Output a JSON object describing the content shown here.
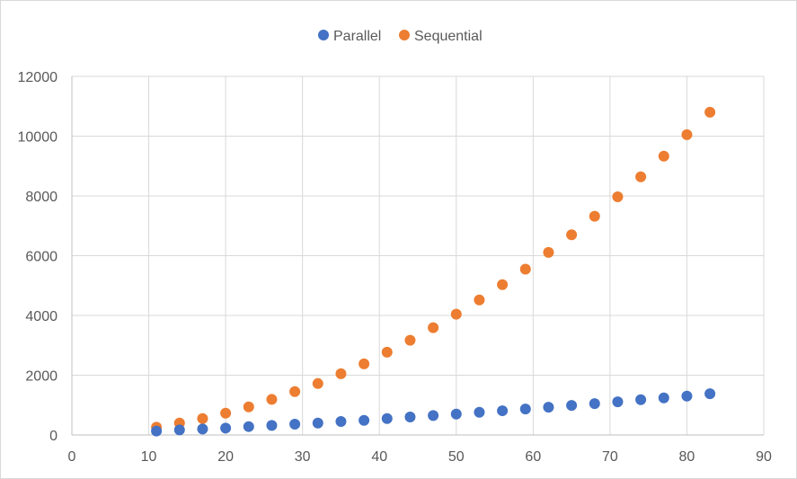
{
  "chart_data": {
    "type": "scatter",
    "title": "",
    "xlabel": "",
    "ylabel": "",
    "xlim": [
      0,
      90
    ],
    "ylim": [
      0,
      12000
    ],
    "x_ticks": [
      0,
      10,
      20,
      30,
      40,
      50,
      60,
      70,
      80,
      90
    ],
    "y_ticks": [
      0,
      2000,
      4000,
      6000,
      8000,
      10000,
      12000
    ],
    "grid": true,
    "legend_position": "top-center",
    "series": [
      {
        "name": "Parallel",
        "color": "#4472C4",
        "x": [
          11,
          14,
          17,
          20,
          23,
          26,
          29,
          32,
          35,
          38,
          41,
          44,
          47,
          50,
          53,
          56,
          59,
          62,
          65,
          68,
          71,
          74,
          77,
          80,
          83
        ],
        "y": [
          130,
          170,
          200,
          230,
          280,
          320,
          360,
          400,
          450,
          490,
          550,
          600,
          650,
          700,
          760,
          810,
          870,
          930,
          990,
          1050,
          1110,
          1180,
          1240,
          1300,
          1380
        ]
      },
      {
        "name": "Sequential",
        "color": "#ED7D31",
        "x": [
          11,
          14,
          17,
          20,
          23,
          26,
          29,
          32,
          35,
          38,
          41,
          44,
          47,
          50,
          53,
          56,
          59,
          62,
          65,
          68,
          71,
          74,
          77,
          80,
          83
        ],
        "y": [
          260,
          400,
          550,
          730,
          940,
          1190,
          1450,
          1720,
          2050,
          2380,
          2770,
          3170,
          3590,
          4040,
          4520,
          5030,
          5550,
          6110,
          6700,
          7320,
          7970,
          8640,
          9330,
          10050,
          10800
        ]
      }
    ]
  }
}
